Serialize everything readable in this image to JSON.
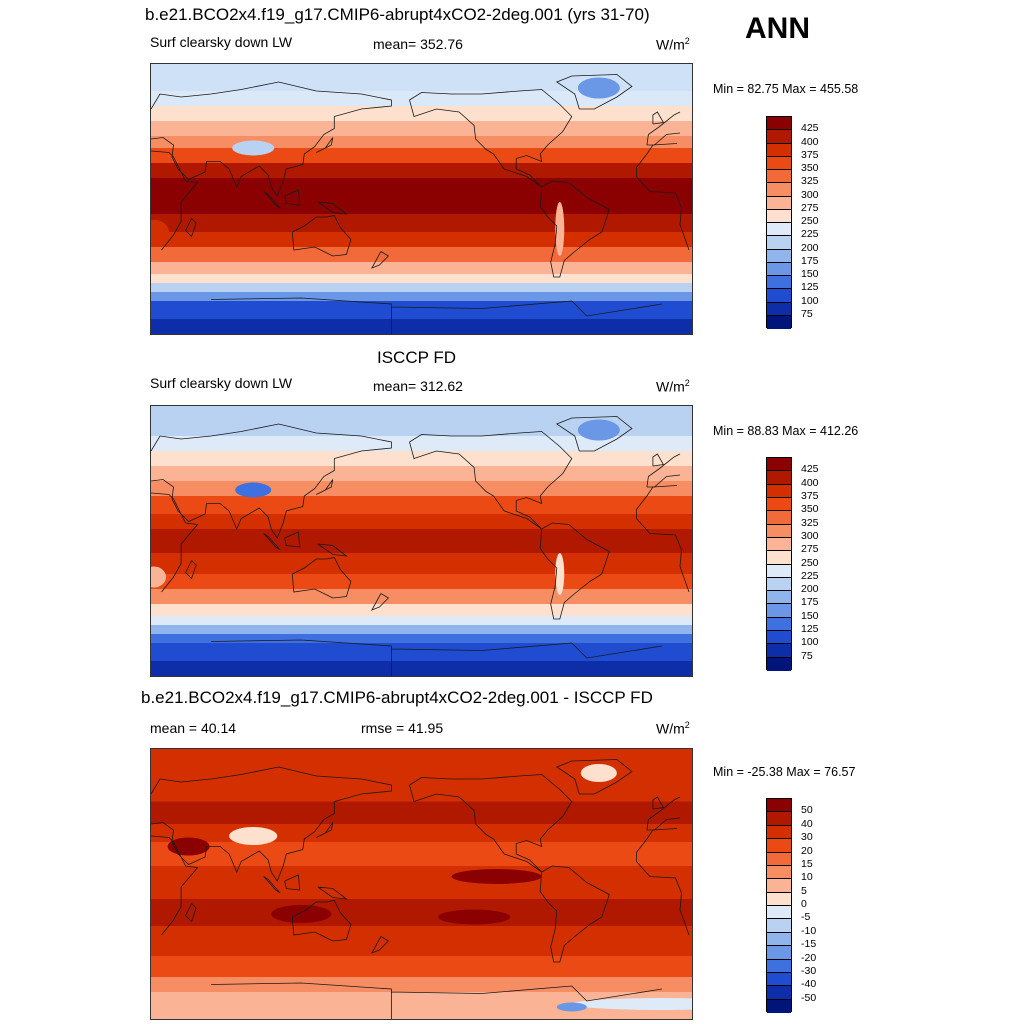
{
  "season": "ANN",
  "panels": [
    {
      "title": "b.e21.BCO2x4.f19_g17.CMIP6-abrupt4xCO2-2deg.001 (yrs 31-70)",
      "left_label": "Surf clearsky down LW",
      "center_label": "mean= 352.76",
      "units": "W/m",
      "units_exp": "2",
      "minmax": "Min =  82.75 Max = 455.58",
      "scale": "abs",
      "colorbar": {
        "labels": [
          "425",
          "400",
          "375",
          "350",
          "325",
          "300",
          "275",
          "250",
          "225",
          "200",
          "175",
          "150",
          "125",
          "100",
          "75"
        ],
        "colors": [
          "#8b0000",
          "#b01800",
          "#d42f00",
          "#ec4a15",
          "#f26a3a",
          "#f78e63",
          "#fab394",
          "#fde0cd",
          "#deeaf8",
          "#b9d2f2",
          "#8fb5ec",
          "#6a97e6",
          "#3f70e0",
          "#1f4cd0",
          "#0d2ea8",
          "#00157a"
        ]
      },
      "map": {
        "bands": [
          {
            "lat": 90,
            "color": "#cfe1f7"
          },
          {
            "lat": 72,
            "color": "#dbe8f8"
          },
          {
            "lat": 62,
            "color": "#fde0cd"
          },
          {
            "lat": 52,
            "color": "#fab394"
          },
          {
            "lat": 42,
            "color": "#f78e63"
          },
          {
            "lat": 34,
            "color": "#ec4a15"
          },
          {
            "lat": 24,
            "color": "#b01800"
          },
          {
            "lat": 14,
            "color": "#8b0000"
          },
          {
            "lat": -10,
            "color": "#b01800"
          },
          {
            "lat": -22,
            "color": "#d42f00"
          },
          {
            "lat": -32,
            "color": "#f26a3a"
          },
          {
            "lat": -42,
            "color": "#fab394"
          },
          {
            "lat": -50,
            "color": "#fde0cd"
          },
          {
            "lat": -56,
            "color": "#b9d2f2"
          },
          {
            "lat": -62,
            "color": "#6a97e6"
          },
          {
            "lat": -68,
            "color": "#1f4cd0"
          },
          {
            "lat": -80,
            "color": "#0d2ea8"
          }
        ],
        "blobs": [
          {
            "lon": 88,
            "lat": 34,
            "rx": 14,
            "ry": 5,
            "color": "#b9d2f2"
          },
          {
            "lon": -42,
            "lat": 74,
            "rx": 14,
            "ry": 7,
            "color": "#6a97e6"
          },
          {
            "lon": -68,
            "lat": -20,
            "rx": 3,
            "ry": 18,
            "color": "#fab394"
          },
          {
            "lon": 22,
            "lat": -22,
            "rx": 10,
            "ry": 8,
            "color": "#d42f00"
          }
        ]
      }
    },
    {
      "title": "ISCCP FD",
      "left_label": "Surf clearsky down LW",
      "center_label": "mean= 312.62",
      "units": "W/m",
      "units_exp": "2",
      "minmax": "Min =  88.83 Max = 412.26",
      "scale": "abs",
      "colorbar": {
        "labels": [
          "425",
          "400",
          "375",
          "350",
          "325",
          "300",
          "275",
          "250",
          "225",
          "200",
          "175",
          "150",
          "125",
          "100",
          "75"
        ],
        "colors": [
          "#8b0000",
          "#b01800",
          "#d42f00",
          "#ec4a15",
          "#f26a3a",
          "#f78e63",
          "#fab394",
          "#fde0cd",
          "#deeaf8",
          "#b9d2f2",
          "#8fb5ec",
          "#6a97e6",
          "#3f70e0",
          "#1f4cd0",
          "#0d2ea8",
          "#00157a"
        ]
      },
      "map": {
        "bands": [
          {
            "lat": 90,
            "color": "#b9d2f2"
          },
          {
            "lat": 70,
            "color": "#deeaf8"
          },
          {
            "lat": 60,
            "color": "#fde0cd"
          },
          {
            "lat": 50,
            "color": "#fab394"
          },
          {
            "lat": 40,
            "color": "#f78e63"
          },
          {
            "lat": 30,
            "color": "#ec4a15"
          },
          {
            "lat": 18,
            "color": "#d42f00"
          },
          {
            "lat": 8,
            "color": "#b01800"
          },
          {
            "lat": -8,
            "color": "#d42f00"
          },
          {
            "lat": -22,
            "color": "#ec4a15"
          },
          {
            "lat": -32,
            "color": "#f78e63"
          },
          {
            "lat": -42,
            "color": "#fde0cd"
          },
          {
            "lat": -50,
            "color": "#deeaf8"
          },
          {
            "lat": -56,
            "color": "#8fb5ec"
          },
          {
            "lat": -62,
            "color": "#3f70e0"
          },
          {
            "lat": -68,
            "color": "#1f4cd0"
          },
          {
            "lat": -80,
            "color": "#0d2ea8"
          }
        ],
        "blobs": [
          {
            "lon": 88,
            "lat": 34,
            "rx": 12,
            "ry": 5,
            "color": "#3f70e0"
          },
          {
            "lon": -42,
            "lat": 74,
            "rx": 14,
            "ry": 7,
            "color": "#6a97e6"
          },
          {
            "lon": -68,
            "lat": -22,
            "rx": 3,
            "ry": 14,
            "color": "#fde0cd"
          },
          {
            "lon": 22,
            "lat": -24,
            "rx": 8,
            "ry": 7,
            "color": "#fab394"
          }
        ]
      }
    },
    {
      "title": "b.e21.BCO2x4.f19_g17.CMIP6-abrupt4xCO2-2deg.001 - ISCCP FD",
      "left_label": "mean =  40.14",
      "center_label": "rmse =  41.95",
      "units": "W/m",
      "units_exp": "2",
      "minmax": "Min = -25.38 Max =  76.57",
      "scale": "diff",
      "colorbar": {
        "labels": [
          "50",
          "40",
          "30",
          "20",
          "15",
          "10",
          "5",
          "0",
          "-5",
          "-10",
          "-15",
          "-20",
          "-30",
          "-40",
          "-50"
        ],
        "colors": [
          "#8b0000",
          "#b01800",
          "#d42f00",
          "#ec4a15",
          "#f26a3a",
          "#f78e63",
          "#fab394",
          "#fde0cd",
          "#deeaf8",
          "#b9d2f2",
          "#8fb5ec",
          "#6a97e6",
          "#3f70e0",
          "#1f4cd0",
          "#0d2ea8",
          "#00157a"
        ]
      },
      "map": {
        "bands": [
          {
            "lat": 90,
            "color": "#d42f00"
          },
          {
            "lat": 55,
            "color": "#b01800"
          },
          {
            "lat": 40,
            "color": "#d42f00"
          },
          {
            "lat": 28,
            "color": "#ec4a15"
          },
          {
            "lat": 12,
            "color": "#d42f00"
          },
          {
            "lat": -10,
            "color": "#b01800"
          },
          {
            "lat": -28,
            "color": "#d42f00"
          },
          {
            "lat": -48,
            "color": "#ec4a15"
          },
          {
            "lat": -62,
            "color": "#f78e63"
          },
          {
            "lat": -72,
            "color": "#fab394"
          }
        ],
        "blobs": [
          {
            "lon": 88,
            "lat": 32,
            "rx": 16,
            "ry": 6,
            "color": "#fde0cd"
          },
          {
            "lon": -42,
            "lat": 74,
            "rx": 12,
            "ry": 6,
            "color": "#fde0cd"
          },
          {
            "lon": 45,
            "lat": 25,
            "rx": 14,
            "ry": 6,
            "color": "#8b0000"
          },
          {
            "lon": -110,
            "lat": 5,
            "rx": 30,
            "ry": 5,
            "color": "#8b0000"
          },
          {
            "lon": 120,
            "lat": -20,
            "rx": 20,
            "ry": 6,
            "color": "#8b0000"
          },
          {
            "lon": -125,
            "lat": -22,
            "rx": 24,
            "ry": 5,
            "color": "#8b0000"
          },
          {
            "lon": 0,
            "lat": -80,
            "rx": 60,
            "ry": 4,
            "color": "#deeaf8"
          },
          {
            "lon": -60,
            "lat": -82,
            "rx": 10,
            "ry": 3,
            "color": "#6a97e6"
          }
        ]
      }
    }
  ]
}
